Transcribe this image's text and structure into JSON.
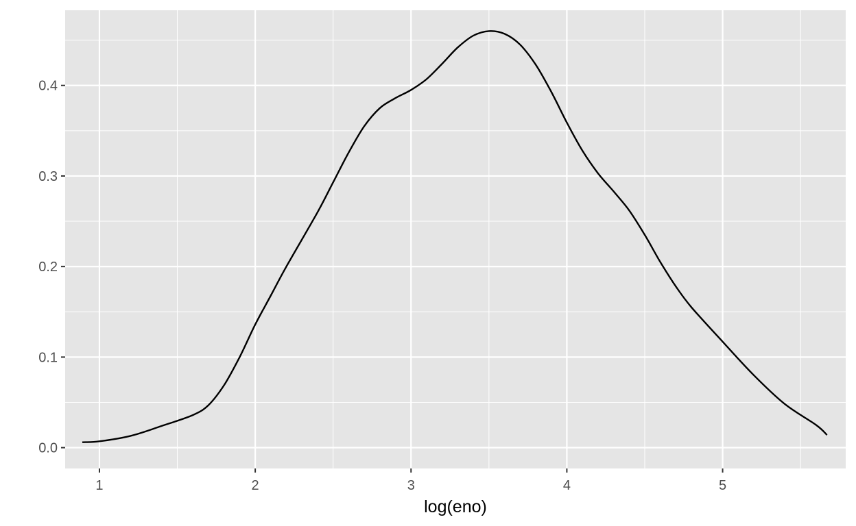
{
  "chart_data": {
    "type": "line",
    "title": "",
    "xlabel": "log(eno)",
    "ylabel": "",
    "xlim": [
      0.78,
      5.79
    ],
    "ylim": [
      -0.023,
      0.483
    ],
    "x_ticks": [
      1,
      2,
      3,
      4,
      5
    ],
    "x_tick_labels": [
      "1",
      "2",
      "3",
      "4",
      "5"
    ],
    "y_ticks": [
      0.0,
      0.1,
      0.2,
      0.3,
      0.4
    ],
    "y_tick_labels": [
      "0.0",
      "0.1",
      "0.2",
      "0.3",
      "0.4"
    ],
    "grid": true,
    "legend": "none",
    "colors": {
      "panel_background": "#e5e5e5",
      "grid": "#ffffff",
      "line": "#000000",
      "tick_text": "#4d4d4d"
    },
    "series": [
      {
        "x": [
          0.89,
          1.0,
          1.2,
          1.4,
          1.6,
          1.7,
          1.8,
          1.9,
          2.0,
          2.1,
          2.2,
          2.4,
          2.5,
          2.6,
          2.7,
          2.8,
          2.9,
          3.0,
          3.1,
          3.2,
          3.3,
          3.4,
          3.5,
          3.6,
          3.7,
          3.8,
          3.9,
          4.0,
          4.1,
          4.2,
          4.3,
          4.4,
          4.5,
          4.6,
          4.7,
          4.8,
          5.0,
          5.2,
          5.4,
          5.6,
          5.67
        ],
        "y": [
          0.006,
          0.007,
          0.013,
          0.024,
          0.036,
          0.047,
          0.069,
          0.1,
          0.136,
          0.168,
          0.2,
          0.26,
          0.293,
          0.326,
          0.355,
          0.375,
          0.386,
          0.395,
          0.407,
          0.424,
          0.442,
          0.455,
          0.46,
          0.457,
          0.445,
          0.423,
          0.393,
          0.359,
          0.328,
          0.303,
          0.283,
          0.262,
          0.235,
          0.205,
          0.178,
          0.155,
          0.117,
          0.08,
          0.048,
          0.025,
          0.014
        ]
      }
    ]
  }
}
